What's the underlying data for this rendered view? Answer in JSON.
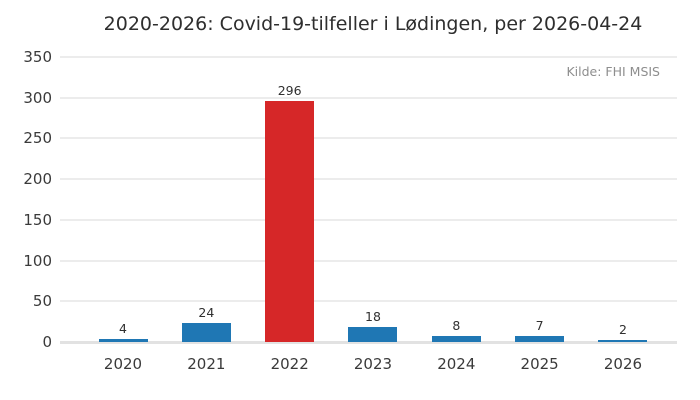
{
  "chart_data": {
    "type": "bar",
    "title": "2020-2026: Covid-19-tilfeller i Lødingen, per 2026-04-24",
    "source": "Kilde: FHI MSIS",
    "categories": [
      "2020",
      "2021",
      "2022",
      "2023",
      "2024",
      "2025",
      "2026"
    ],
    "values": [
      4,
      24,
      296,
      18,
      8,
      7,
      2
    ],
    "colors": [
      "#1f77b4",
      "#1f77b4",
      "#d62728",
      "#1f77b4",
      "#1f77b4",
      "#1f77b4",
      "#1f77b4"
    ],
    "highlight_color": "#d62728",
    "default_bar_color": "#1f77b4",
    "xlabel": "",
    "ylabel": "",
    "ylim": [
      0,
      350
    ],
    "yticks": [
      0,
      50,
      100,
      150,
      200,
      250,
      300,
      350
    ],
    "grid": true,
    "legend": false,
    "grid_color": "#ececec",
    "axis_line_color": "#e2e2e2",
    "text_color": "#303030",
    "source_text_color": "#8e8e8e"
  }
}
